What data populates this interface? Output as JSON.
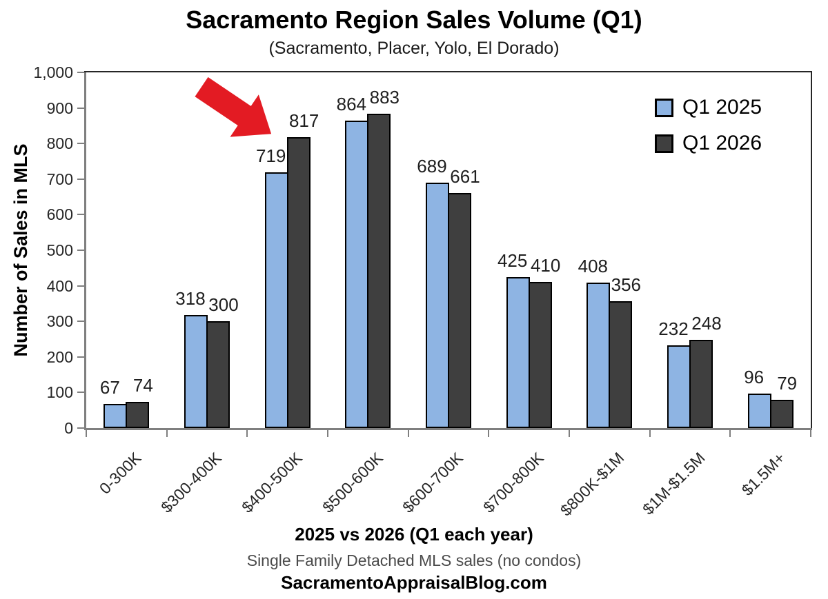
{
  "chart_data": {
    "type": "bar",
    "title": "Sacramento Region Sales Volume (Q1)",
    "subtitle": "(Sacramento, Placer, Yolo, El Dorado)",
    "ylabel": "Number of Sales in MLS",
    "xlabel": "2025 vs 2026 (Q1 each year)",
    "footnote": "Single Family Detached MLS sales (no condos)",
    "credit": "SacramentoAppraisalBlog.com",
    "categories": [
      "0-300K",
      "$300-400K",
      "$400-500K",
      "$500-600K",
      "$600-700K",
      "$700-800K",
      "$800K-$1M",
      "$1M-$1.5M",
      "$1.5M+"
    ],
    "series": [
      {
        "name": "Q1 2025",
        "color": "#8EB4E3",
        "values": [
          67,
          318,
          719,
          864,
          689,
          425,
          408,
          232,
          96
        ]
      },
      {
        "name": "Q1 2026",
        "color": "#3F3F3F",
        "values": [
          74,
          300,
          817,
          883,
          661,
          410,
          356,
          248,
          79
        ]
      }
    ],
    "ylim": [
      0,
      1000
    ],
    "ytick_step": 100,
    "grid": false,
    "legend_position": "top-right",
    "annotation": {
      "type": "block-arrow",
      "color": "#E31B23",
      "direction": "down-right",
      "points_to": "Q1 2026 bar in $400-500K (817)"
    }
  },
  "colors": {
    "axis": "#7F7F7F",
    "plot_border": "#262626",
    "bar_border": "#000000",
    "label_text": "#262626",
    "footnote_text": "#4a4a4a"
  }
}
